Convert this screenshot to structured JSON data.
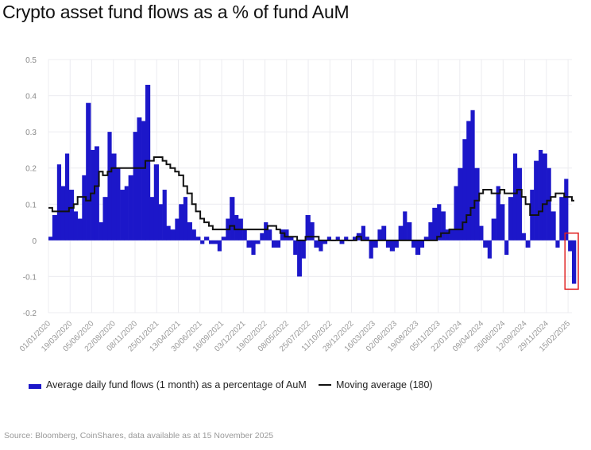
{
  "title": "Crypto asset fund flows as a % of fund AuM",
  "source": "Source: Bloomberg, CoinShares, data available as at 15 November 2025",
  "colors": {
    "bars": "#1c17c9",
    "line": "#111111",
    "highlight": "#e02020",
    "grid": "#ececf0"
  },
  "chart_data": {
    "type": "bar",
    "title": "Crypto asset fund flows as a % of fund AuM",
    "xlabel": "",
    "ylabel": "",
    "ylim": [
      -0.2,
      0.5
    ],
    "xlim": [
      "2020-01-01",
      "2025-03-01"
    ],
    "grid": true,
    "legend_placement": "bottom",
    "yticks": [
      "0.5",
      "0.4",
      "0.3",
      "0.2",
      "0.1",
      "0",
      "-0.1",
      "-0.2"
    ],
    "xticks": [
      "01/01/2020",
      "19/03/2020",
      "05/06/2020",
      "22/08/2020",
      "08/11/2020",
      "25/01/2021",
      "13/04/2021",
      "30/06/2021",
      "16/09/2021",
      "03/12/2021",
      "19/02/2022",
      "08/05/2022",
      "25/07/2022",
      "11/10/2022",
      "28/12/2022",
      "16/03/2023",
      "02/06/2023",
      "19/08/2023",
      "05/11/2023",
      "22/01/2024",
      "09/04/2024",
      "26/06/2024",
      "12/09/2024",
      "29/11/2024",
      "15/02/2025"
    ],
    "highlight": {
      "from": "2025-02-01",
      "to": "2025-03-01",
      "ymin": -0.135,
      "ymax": 0.02
    },
    "x": [
      "2020-01-01",
      "2020-01-15",
      "2020-02-01",
      "2020-02-15",
      "2020-03-01",
      "2020-03-15",
      "2020-04-01",
      "2020-04-15",
      "2020-05-01",
      "2020-05-15",
      "2020-06-01",
      "2020-06-15",
      "2020-07-01",
      "2020-07-15",
      "2020-08-01",
      "2020-08-15",
      "2020-09-01",
      "2020-09-15",
      "2020-10-01",
      "2020-10-15",
      "2020-11-01",
      "2020-11-15",
      "2020-12-01",
      "2020-12-15",
      "2021-01-01",
      "2021-01-15",
      "2021-02-01",
      "2021-02-15",
      "2021-03-01",
      "2021-03-15",
      "2021-04-01",
      "2021-04-15",
      "2021-05-01",
      "2021-05-15",
      "2021-06-01",
      "2021-06-15",
      "2021-07-01",
      "2021-07-15",
      "2021-08-01",
      "2021-08-15",
      "2021-09-01",
      "2021-09-15",
      "2021-10-01",
      "2021-10-15",
      "2021-11-01",
      "2021-11-15",
      "2021-12-01",
      "2021-12-15",
      "2022-01-01",
      "2022-01-15",
      "2022-02-01",
      "2022-02-15",
      "2022-03-01",
      "2022-03-15",
      "2022-04-01",
      "2022-04-15",
      "2022-05-01",
      "2022-05-15",
      "2022-06-01",
      "2022-06-15",
      "2022-07-01",
      "2022-07-15",
      "2022-08-01",
      "2022-08-15",
      "2022-09-01",
      "2022-09-15",
      "2022-10-01",
      "2022-10-15",
      "2022-11-01",
      "2022-11-15",
      "2022-12-01",
      "2022-12-15",
      "2023-01-01",
      "2023-01-15",
      "2023-02-01",
      "2023-02-15",
      "2023-03-01",
      "2023-03-15",
      "2023-04-01",
      "2023-04-15",
      "2023-05-01",
      "2023-05-15",
      "2023-06-01",
      "2023-06-15",
      "2023-07-01",
      "2023-07-15",
      "2023-08-01",
      "2023-08-15",
      "2023-09-01",
      "2023-09-15",
      "2023-10-01",
      "2023-10-15",
      "2023-11-01",
      "2023-11-15",
      "2023-12-01",
      "2023-12-15",
      "2024-01-01",
      "2024-01-15",
      "2024-02-01",
      "2024-02-15",
      "2024-03-01",
      "2024-03-15",
      "2024-04-01",
      "2024-04-15",
      "2024-05-01",
      "2024-05-15",
      "2024-06-01",
      "2024-06-15",
      "2024-07-01",
      "2024-07-15",
      "2024-08-01",
      "2024-08-15",
      "2024-09-01",
      "2024-09-15",
      "2024-10-01",
      "2024-10-15",
      "2024-11-01",
      "2024-11-15",
      "2024-12-01",
      "2024-12-15",
      "2025-01-01",
      "2025-01-15",
      "2025-02-01",
      "2025-02-15",
      "2025-03-01"
    ],
    "series": [
      {
        "name": "Average daily fund flows (1 month) as a percentage of AuM",
        "type": "bar",
        "values": [
          0.01,
          0.07,
          0.21,
          0.15,
          0.24,
          0.14,
          0.08,
          0.06,
          0.18,
          0.38,
          0.25,
          0.26,
          0.05,
          0.12,
          0.3,
          0.24,
          0.2,
          0.14,
          0.15,
          0.18,
          0.3,
          0.34,
          0.33,
          0.43,
          0.12,
          0.21,
          0.1,
          0.14,
          0.04,
          0.03,
          0.06,
          0.1,
          0.12,
          0.05,
          0.03,
          0.01,
          -0.01,
          0.01,
          -0.01,
          -0.01,
          -0.03,
          0.01,
          0.06,
          0.12,
          0.07,
          0.06,
          0.03,
          -0.02,
          -0.04,
          -0.01,
          0.02,
          0.05,
          0.03,
          -0.02,
          -0.02,
          0.03,
          0.03,
          0.01,
          -0.04,
          -0.1,
          -0.05,
          0.07,
          0.05,
          -0.02,
          -0.03,
          -0.01,
          0.01,
          0.0,
          0.01,
          -0.01,
          0.01,
          0.0,
          0.01,
          0.02,
          0.04,
          0.01,
          -0.05,
          -0.02,
          0.03,
          0.04,
          -0.02,
          -0.03,
          -0.02,
          0.04,
          0.08,
          0.05,
          -0.02,
          -0.04,
          -0.02,
          0.01,
          0.05,
          0.09,
          0.1,
          0.08,
          0.03,
          0.03,
          0.15,
          0.2,
          0.28,
          0.33,
          0.36,
          0.2,
          0.04,
          -0.02,
          -0.05,
          0.06,
          0.15,
          0.1,
          -0.04,
          0.12,
          0.24,
          0.2,
          0.02,
          -0.02,
          0.14,
          0.22,
          0.25,
          0.24,
          0.2,
          0.08,
          -0.02,
          0.12,
          0.17,
          -0.03,
          -0.12
        ]
      },
      {
        "name": "Moving average (180)",
        "type": "line",
        "values": [
          0.09,
          0.08,
          0.08,
          0.08,
          0.08,
          0.09,
          0.1,
          0.12,
          0.12,
          0.11,
          0.13,
          0.15,
          0.19,
          0.18,
          0.19,
          0.2,
          0.2,
          0.2,
          0.2,
          0.2,
          0.2,
          0.2,
          0.2,
          0.22,
          0.22,
          0.23,
          0.23,
          0.22,
          0.21,
          0.2,
          0.19,
          0.18,
          0.15,
          0.13,
          0.1,
          0.08,
          0.06,
          0.05,
          0.04,
          0.03,
          0.03,
          0.03,
          0.03,
          0.04,
          0.03,
          0.03,
          0.03,
          0.03,
          0.03,
          0.03,
          0.03,
          0.03,
          0.04,
          0.04,
          0.03,
          0.02,
          0.01,
          0.01,
          0.01,
          0.0,
          0.0,
          0.01,
          0.01,
          0.01,
          0.0,
          0.0,
          0.0,
          0.0,
          0.0,
          0.0,
          0.0,
          0.0,
          0.0,
          0.01,
          0.0,
          0.0,
          0.0,
          0.0,
          0.0,
          0.0,
          0.0,
          0.0,
          0.0,
          0.0,
          0.0,
          0.0,
          0.0,
          0.0,
          0.0,
          0.0,
          0.0,
          0.0,
          0.01,
          0.02,
          0.02,
          0.03,
          0.03,
          0.03,
          0.05,
          0.07,
          0.09,
          0.11,
          0.13,
          0.14,
          0.14,
          0.13,
          0.13,
          0.14,
          0.13,
          0.13,
          0.13,
          0.14,
          0.12,
          0.1,
          0.07,
          0.07,
          0.08,
          0.1,
          0.11,
          0.12,
          0.13,
          0.13,
          0.12,
          0.12,
          0.11
        ]
      }
    ]
  }
}
